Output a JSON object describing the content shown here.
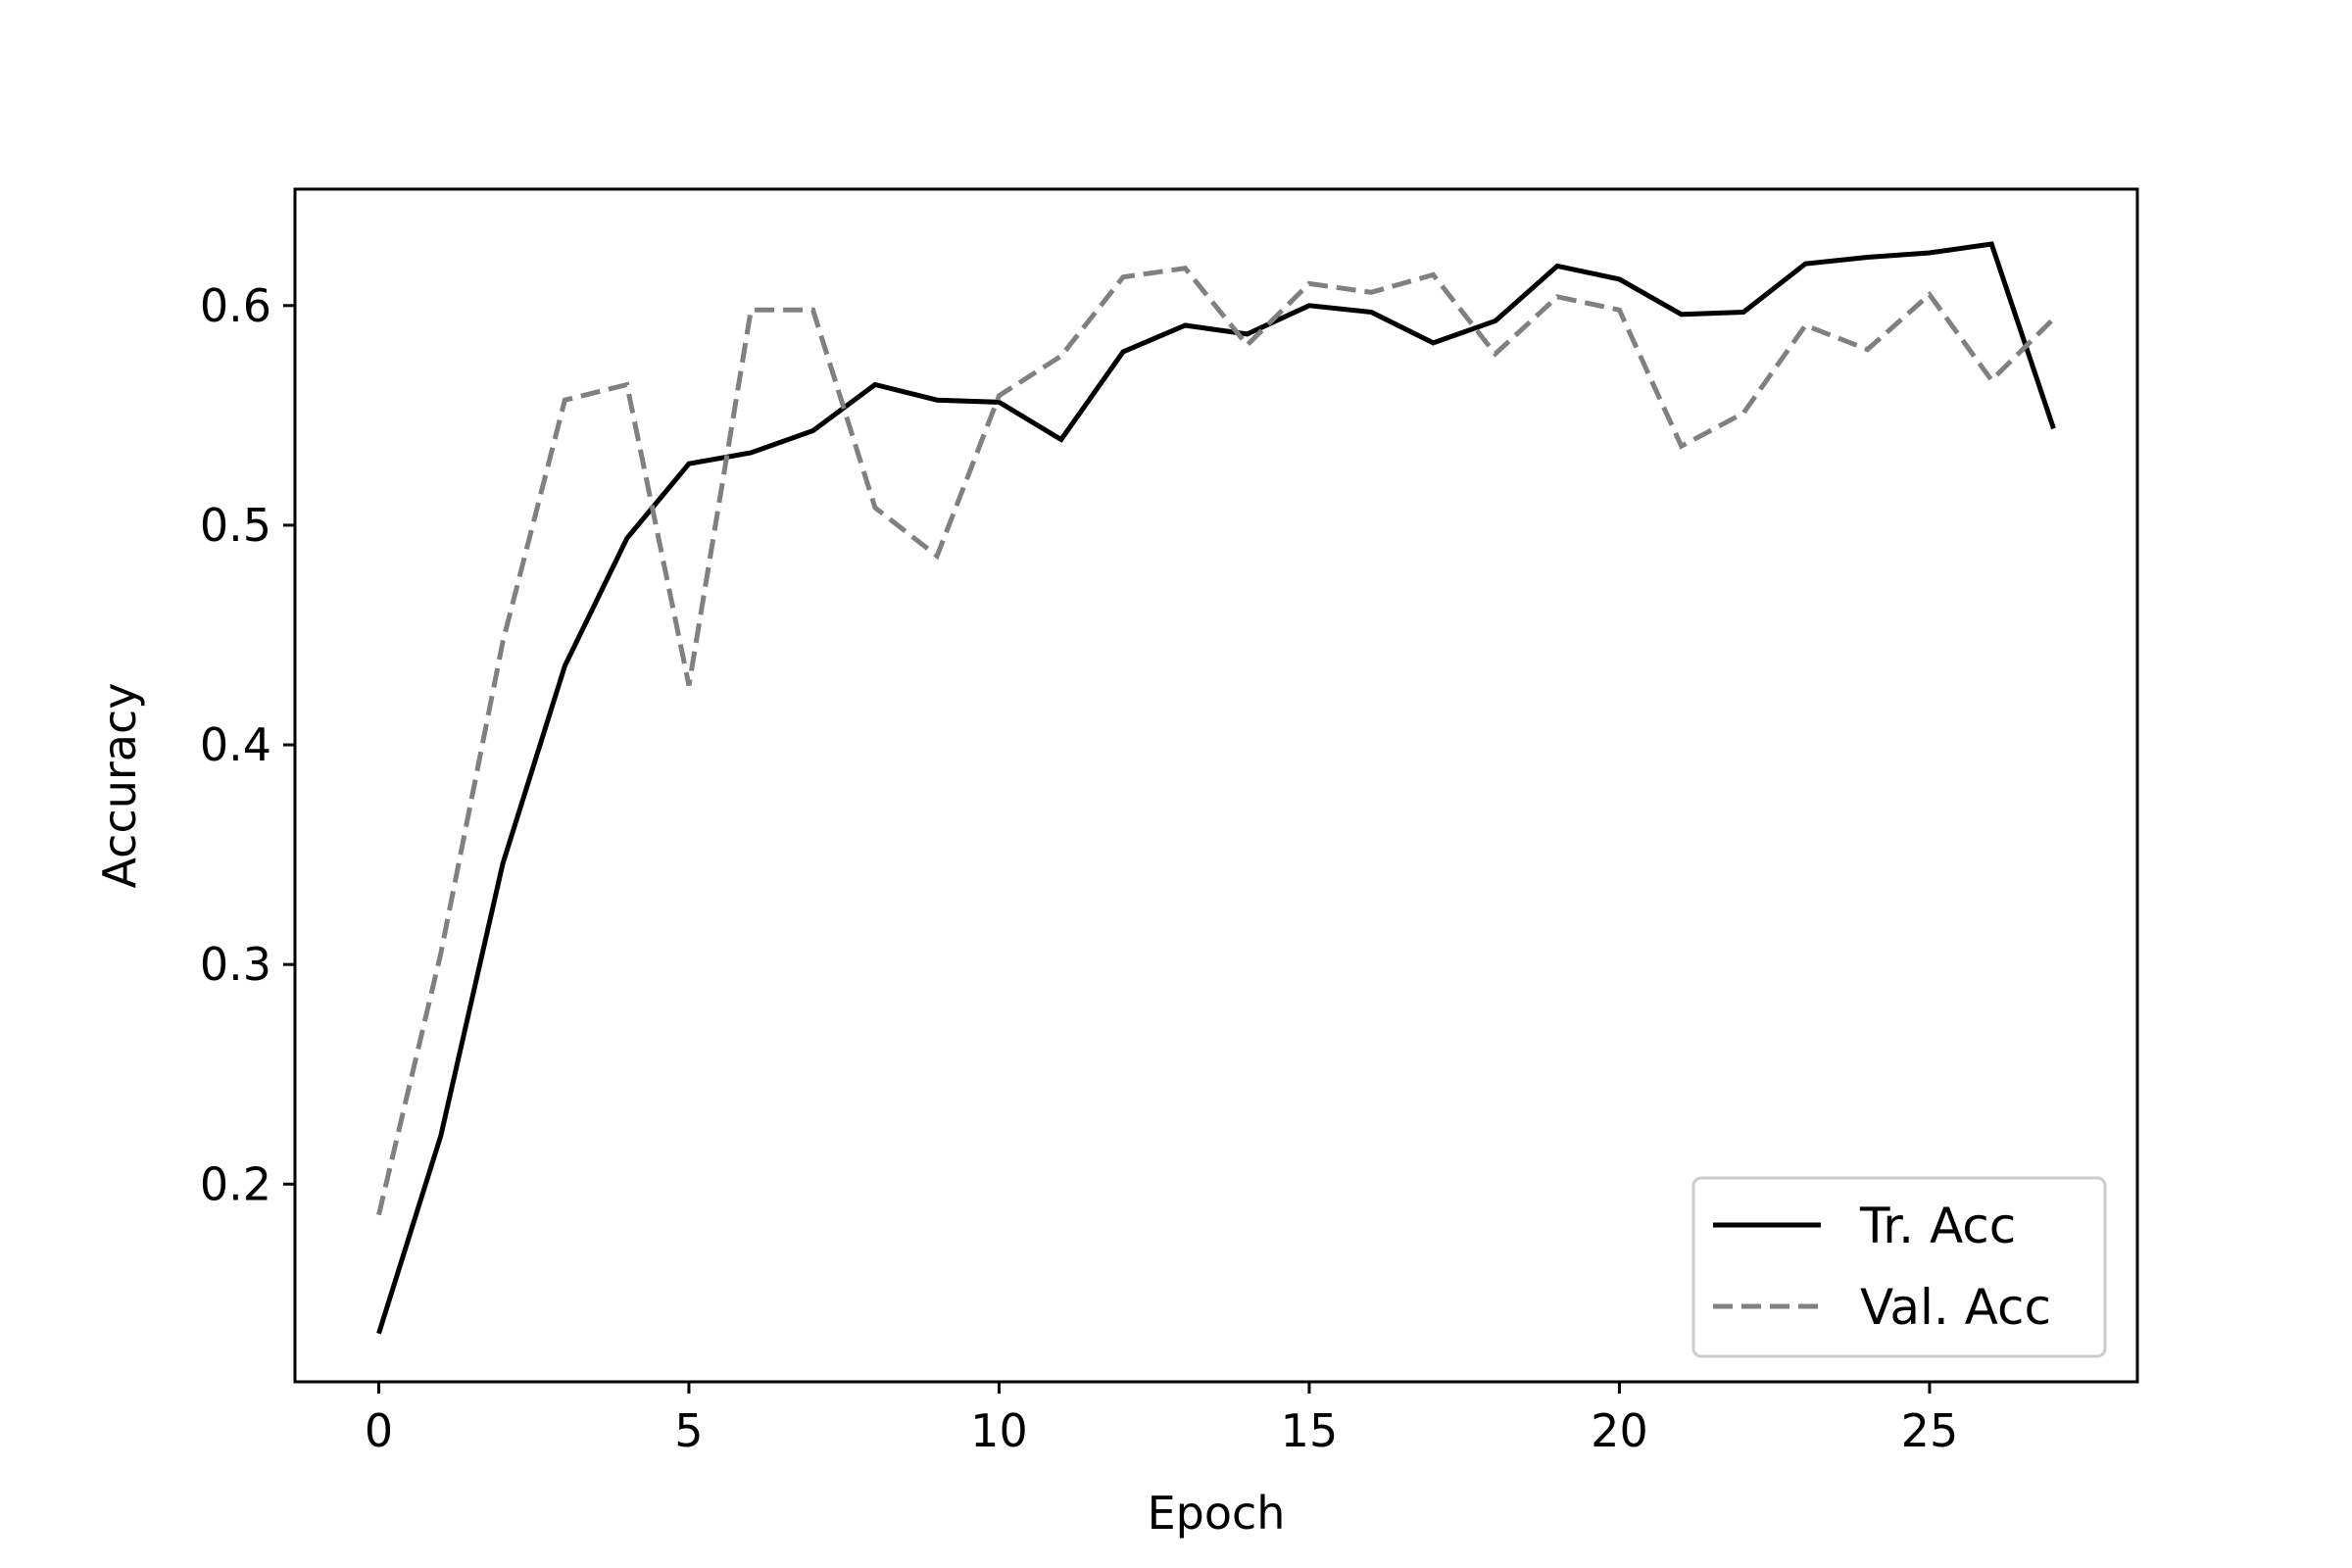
{
  "chart_data": {
    "type": "line",
    "xlabel": "Epoch",
    "ylabel": "Accuracy",
    "xlim": [
      -1.35,
      28.35
    ],
    "ylim": [
      0.11,
      0.653
    ],
    "xticks": [
      0,
      5,
      10,
      15,
      20,
      25
    ],
    "yticks": [
      0.2,
      0.3,
      0.4,
      0.5,
      0.6
    ],
    "xtick_labels": [
      "0",
      "5",
      "10",
      "15",
      "20",
      "25"
    ],
    "ytick_labels": [
      "0.2",
      "0.3",
      "0.4",
      "0.5",
      "0.6"
    ],
    "grid": false,
    "legend_position": "lower-right",
    "x": [
      0,
      1,
      2,
      3,
      4,
      5,
      6,
      7,
      8,
      9,
      10,
      11,
      12,
      13,
      14,
      15,
      16,
      17,
      18,
      19,
      20,
      21,
      22,
      23,
      24,
      25,
      26,
      27
    ],
    "series": [
      {
        "name": "Tr. Acc",
        "color": "#000000",
        "style": "solid",
        "values": [
          0.132,
          0.222,
          0.346,
          0.436,
          0.494,
          0.528,
          0.533,
          0.543,
          0.564,
          0.557,
          0.556,
          0.539,
          0.579,
          0.591,
          0.587,
          0.6,
          0.597,
          0.583,
          0.593,
          0.618,
          0.612,
          0.596,
          0.597,
          0.619,
          0.622,
          0.624,
          0.628,
          0.544
        ]
      },
      {
        "name": "Val. Acc",
        "color": "#808080",
        "style": "dashed",
        "values": [
          0.186,
          0.305,
          0.447,
          0.557,
          0.564,
          0.427,
          0.598,
          0.598,
          0.508,
          0.486,
          0.559,
          0.577,
          0.613,
          0.617,
          0.582,
          0.61,
          0.606,
          0.614,
          0.578,
          0.604,
          0.598,
          0.536,
          0.551,
          0.591,
          0.58,
          0.605,
          0.566,
          0.594
        ]
      }
    ]
  }
}
